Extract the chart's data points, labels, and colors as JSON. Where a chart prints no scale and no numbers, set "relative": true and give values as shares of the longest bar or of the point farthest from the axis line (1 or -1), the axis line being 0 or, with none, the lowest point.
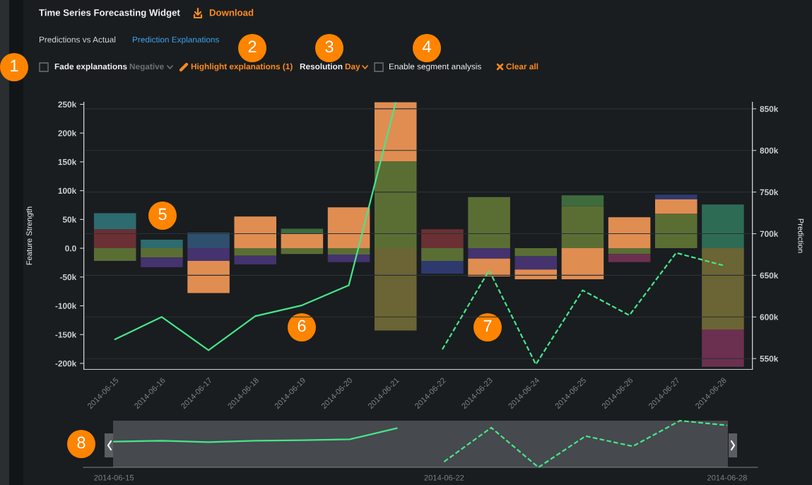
{
  "chart_data": [
    {
      "type": "bar",
      "title": "Time Series Forecasting Widget",
      "ylabel": "Feature Strength",
      "y2label": "Prediction",
      "stacked": true,
      "grid": "y2",
      "categories": [
        "2014-06-15",
        "2014-06-16",
        "2014-06-17",
        "2014-06-18",
        "2014-06-19",
        "2014-06-20",
        "2014-06-21",
        "2014-06-22",
        "2014-06-23",
        "2014-06-24",
        "2014-06-25",
        "2014-06-26",
        "2014-06-27",
        "2014-06-28"
      ],
      "series": [
        {
          "type": "bar",
          "color": "#5a6e34",
          "values": [
            -22000,
            -16000,
            null,
            -13000,
            -10000,
            -11000,
            151000,
            -22000,
            89000,
            -14000,
            73000,
            -10000,
            60000,
            null
          ]
        },
        {
          "type": "bar",
          "color": "#44336e",
          "values": [
            null,
            -17000,
            -22000,
            -15000,
            null,
            -13000,
            null,
            null,
            -18000,
            -23000,
            null,
            null,
            null,
            null
          ]
        },
        {
          "type": "bar",
          "color": "#e08d52",
          "values": [
            null,
            null,
            -56000,
            55000,
            25000,
            71000,
            103000,
            null,
            -31000,
            -17000,
            -54000,
            54000,
            25000,
            null
          ]
        },
        {
          "type": "bar",
          "color": "#6b3033",
          "values": [
            33000,
            null,
            null,
            null,
            null,
            null,
            null,
            33000,
            null,
            null,
            null,
            null,
            null,
            null
          ]
        },
        {
          "type": "bar",
          "color": "#2e6b6e",
          "values": [
            28000,
            15000,
            null,
            null,
            null,
            null,
            null,
            null,
            null,
            null,
            null,
            null,
            null,
            null
          ]
        },
        {
          "type": "bar",
          "color": "#2f4f6e",
          "values": [
            null,
            null,
            27000,
            null,
            null,
            null,
            null,
            null,
            null,
            null,
            null,
            null,
            null,
            null
          ]
        },
        {
          "type": "bar",
          "color": "#2e3a6e",
          "values": [
            null,
            null,
            null,
            null,
            null,
            null,
            null,
            -22000,
            null,
            null,
            null,
            null,
            8000,
            null
          ]
        },
        {
          "type": "bar",
          "color": "#3e6b3c",
          "values": [
            null,
            null,
            null,
            null,
            9000,
            null,
            null,
            null,
            null,
            null,
            19000,
            null,
            null,
            null
          ]
        },
        {
          "type": "bar",
          "color": "#6b6434",
          "values": [
            null,
            null,
            null,
            null,
            null,
            null,
            -143000,
            null,
            null,
            null,
            null,
            null,
            null,
            -141000
          ]
        },
        {
          "type": "bar",
          "color": "#6b3050",
          "values": [
            null,
            null,
            null,
            null,
            null,
            null,
            null,
            null,
            null,
            null,
            null,
            -14000,
            null,
            -65000
          ]
        },
        {
          "type": "bar",
          "color": "#2e6b55",
          "values": [
            null,
            null,
            null,
            null,
            null,
            null,
            null,
            null,
            null,
            null,
            null,
            null,
            null,
            76000
          ]
        },
        {
          "type": "line",
          "axis": "y2",
          "color": "#46e68a",
          "line_style": "solid",
          "values": [
            573000,
            600000,
            560000,
            601000,
            614000,
            638000,
            857000,
            null,
            null,
            null,
            null,
            null,
            null,
            null
          ]
        },
        {
          "type": "line",
          "axis": "y2",
          "color": "#46e68a",
          "line_style": "dashed",
          "values": [
            null,
            null,
            null,
            null,
            null,
            null,
            null,
            561000,
            656000,
            543000,
            632000,
            602000,
            677000,
            662000
          ]
        }
      ],
      "ylim": [
        -210500,
        253600
      ],
      "yticks": [
        {
          "value": -200000,
          "label": "-200k"
        },
        {
          "value": -150000,
          "label": "-150k"
        },
        {
          "value": -100000,
          "label": "-100k"
        },
        {
          "value": -50000,
          "label": "-50k"
        },
        {
          "value": 0,
          "label": "0.0"
        },
        {
          "value": 50000,
          "label": "50k"
        },
        {
          "value": 100000,
          "label": "100k"
        },
        {
          "value": 150000,
          "label": "150k"
        },
        {
          "value": 200000,
          "label": "200k"
        },
        {
          "value": 250000,
          "label": "250k"
        }
      ],
      "y2lim": [
        537000,
        857900
      ],
      "y2ticks": [
        {
          "value": 550000,
          "label": "550k"
        },
        {
          "value": 600000,
          "label": "600k"
        },
        {
          "value": 650000,
          "label": "650k"
        },
        {
          "value": 700000,
          "label": "700k"
        },
        {
          "value": 750000,
          "label": "750k"
        },
        {
          "value": 800000,
          "label": "800k"
        },
        {
          "value": 850000,
          "label": "850k"
        }
      ],
      "annotations": [
        "Download",
        "Predictions vs Actual",
        "Prediction Explanations",
        "Fade explanations",
        "Negative",
        "Highlight explanations (1)",
        "Resolution",
        "Day",
        "Enable segment analysis",
        "Clear all",
        "1",
        "2",
        "3",
        "4",
        "5",
        "6",
        "7"
      ]
    },
    {
      "type": "line",
      "relative": true,
      "tick_labels": "x",
      "x": [
        "2014-06-15",
        "2014-06-16",
        "2014-06-17",
        "2014-06-18",
        "2014-06-19",
        "2014-06-20",
        "2014-06-21",
        "2014-06-22",
        "2014-06-23",
        "2014-06-24",
        "2014-06-25",
        "2014-06-26",
        "2014-06-27",
        "2014-06-28"
      ],
      "series": [
        {
          "color": "#46e68a",
          "line_style": "solid",
          "values": [
            0.55,
            0.57,
            0.54,
            0.57,
            0.58,
            0.6,
            0.84,
            null,
            null,
            null,
            null,
            null,
            null,
            null
          ]
        },
        {
          "color": "#46e68a",
          "line_style": "dashed",
          "values": [
            null,
            null,
            null,
            null,
            null,
            null,
            null,
            0.12,
            0.85,
            0,
            0.67,
            0.45,
            1,
            0.9
          ]
        }
      ],
      "xlim": [
        "2014-06-14T08:30",
        "2014-06-28T15:30"
      ],
      "xticks": [
        "2014-06-15",
        "2014-06-22",
        "2014-06-28"
      ],
      "annotations": [
        "8"
      ]
    }
  ]
}
